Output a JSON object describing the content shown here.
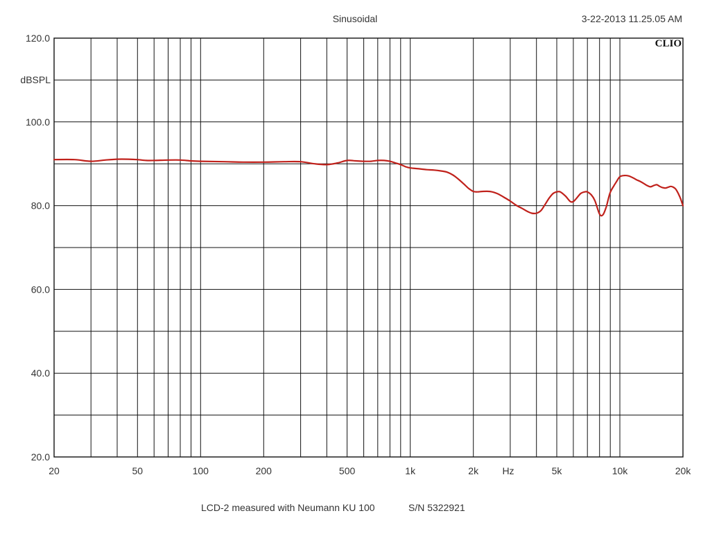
{
  "header": {
    "title": "Sinusoidal",
    "timestamp": "3-22-2013 11.25.05 AM",
    "brand": "CLIO"
  },
  "caption": {
    "text": "LCD-2 measured with Neumann KU 100",
    "serial": "S/N  5322921"
  },
  "chart_data": {
    "type": "line",
    "title": "Sinusoidal",
    "xlabel": "Hz",
    "ylabel": "dBSPL",
    "xscale": "log",
    "xlim": [
      20,
      20000
    ],
    "ylim": [
      20,
      120
    ],
    "grid": true,
    "legend": "none",
    "x_tick_labels": [
      {
        "value": 20,
        "label": "20"
      },
      {
        "value": 50,
        "label": "50"
      },
      {
        "value": 100,
        "label": "100"
      },
      {
        "value": 200,
        "label": "200"
      },
      {
        "value": 500,
        "label": "500"
      },
      {
        "value": 1000,
        "label": "1k"
      },
      {
        "value": 2000,
        "label": "2k"
      },
      {
        "value": 5000,
        "label": "5k"
      },
      {
        "value": 10000,
        "label": "10k"
      },
      {
        "value": 20000,
        "label": "20k"
      }
    ],
    "y_tick_labels": [
      {
        "value": 120,
        "label": "120.0"
      },
      {
        "value": 100,
        "label": "100.0"
      },
      {
        "value": 80,
        "label": "80.0"
      },
      {
        "value": 60,
        "label": "60.0"
      },
      {
        "value": 40,
        "label": "40.0"
      },
      {
        "value": 20,
        "label": "20.0"
      }
    ],
    "x_minor_grid": [
      30,
      40,
      60,
      70,
      80,
      90,
      300,
      400,
      600,
      700,
      800,
      900,
      3000,
      4000,
      6000,
      7000,
      8000,
      9000
    ],
    "y_grid": [
      30,
      50,
      70,
      90,
      110
    ],
    "series": [
      {
        "color": "#c0211b",
        "x": [
          20,
          25,
          30,
          35,
          40,
          45,
          50,
          55,
          60,
          70,
          80,
          90,
          100,
          130,
          160,
          200,
          250,
          300,
          350,
          400,
          450,
          500,
          550,
          600,
          650,
          700,
          750,
          800,
          850,
          900,
          950,
          1000,
          1100,
          1200,
          1300,
          1400,
          1500,
          1600,
          1700,
          1800,
          1900,
          2000,
          2100,
          2200,
          2400,
          2600,
          2800,
          3000,
          3200,
          3400,
          3600,
          3800,
          4000,
          4200,
          4400,
          4600,
          4800,
          5000,
          5200,
          5500,
          5800,
          6000,
          6200,
          6500,
          6800,
          7000,
          7300,
          7600,
          8000,
          8300,
          8600,
          8800,
          9000,
          9300,
          9600,
          10000,
          10500,
          11000,
          11500,
          12000,
          12500,
          13000,
          13500,
          14000,
          14500,
          15000,
          15500,
          16000,
          16500,
          17000,
          17500,
          18000,
          18500,
          19000,
          19500,
          20000
        ],
        "y": [
          91.0,
          91.0,
          90.6,
          90.9,
          91.1,
          91.1,
          91.0,
          90.8,
          90.8,
          90.9,
          90.9,
          90.7,
          90.6,
          90.5,
          90.4,
          90.4,
          90.5,
          90.5,
          90.0,
          89.8,
          90.2,
          90.8,
          90.7,
          90.6,
          90.6,
          90.8,
          90.8,
          90.6,
          90.2,
          89.8,
          89.3,
          89.0,
          88.8,
          88.6,
          88.5,
          88.3,
          88.0,
          87.3,
          86.3,
          85.2,
          84.1,
          83.4,
          83.3,
          83.4,
          83.4,
          82.9,
          82.0,
          81.1,
          80.1,
          79.4,
          78.7,
          78.2,
          78.2,
          78.8,
          80.3,
          81.8,
          82.9,
          83.3,
          83.3,
          82.3,
          81.0,
          81.0,
          81.7,
          82.9,
          83.3,
          83.3,
          82.6,
          81.2,
          78.0,
          77.8,
          79.6,
          81.5,
          83.2,
          84.5,
          85.6,
          86.9,
          87.2,
          87.1,
          86.7,
          86.2,
          85.8,
          85.3,
          84.8,
          84.5,
          84.8,
          85.0,
          84.6,
          84.3,
          84.2,
          84.4,
          84.6,
          84.4,
          83.9,
          82.9,
          81.6,
          80.0
        ]
      }
    ]
  }
}
